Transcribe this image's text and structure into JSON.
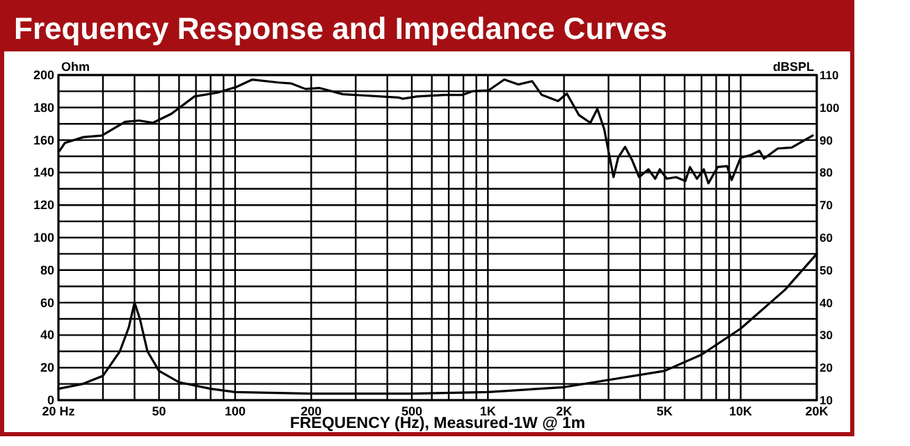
{
  "chart_data": {
    "type": "line",
    "title": "Frequency Response and Impedance Curves",
    "xlabel": "FREQUENCY (Hz), Measured-1W @ 1m",
    "ylabel": "Ohm",
    "y2label": "dBSPL",
    "log": "x",
    "grid": true,
    "line_style": "solid",
    "marker": "none",
    "xlim": [
      20,
      20000
    ],
    "xticks": [
      {
        "value": 20,
        "label": "20 Hz"
      },
      {
        "value": 30,
        "label": null
      },
      {
        "value": 40,
        "label": null
      },
      50,
      {
        "value": 60,
        "label": null
      },
      {
        "value": 70,
        "label": null
      },
      {
        "value": 80,
        "label": null
      },
      {
        "value": 90,
        "label": null
      },
      100,
      200,
      {
        "value": 300,
        "label": null
      },
      {
        "value": 400,
        "label": null
      },
      500,
      {
        "value": 600,
        "label": null
      },
      {
        "value": 700,
        "label": null
      },
      {
        "value": 800,
        "label": null
      },
      {
        "value": 900,
        "label": null
      },
      {
        "value": 1000,
        "label": "1K"
      },
      {
        "value": 2000,
        "label": "2K"
      },
      {
        "value": 3000,
        "label": null
      },
      {
        "value": 4000,
        "label": null
      },
      {
        "value": 5000,
        "label": "5K"
      },
      {
        "value": 6000,
        "label": null
      },
      {
        "value": 7000,
        "label": null
      },
      {
        "value": 8000,
        "label": null
      },
      {
        "value": 9000,
        "label": null
      },
      {
        "value": 10000,
        "label": "10K"
      },
      {
        "value": 20000,
        "label": "20K"
      }
    ],
    "ylim": [
      0,
      200
    ],
    "yticks": [
      0,
      {
        "value": 10,
        "label": null
      },
      20,
      {
        "value": 30,
        "label": null
      },
      40,
      {
        "value": 50,
        "label": null
      },
      60,
      {
        "value": 70,
        "label": null
      },
      80,
      {
        "value": 90,
        "label": null
      },
      100,
      {
        "value": 110,
        "label": null
      },
      120,
      {
        "value": 130,
        "label": null
      },
      140,
      {
        "value": 150,
        "label": null
      },
      160,
      {
        "value": 170,
        "label": null
      },
      180,
      {
        "value": 190,
        "label": null
      },
      200
    ],
    "y2lim": [
      10,
      110
    ],
    "y2ticks": [
      10,
      20,
      30,
      40,
      50,
      60,
      70,
      80,
      90,
      100,
      110
    ],
    "series": [
      {
        "color": "#000000",
        "axis": "y2",
        "x": [
          20.2,
          21.2,
          25.1,
          29.7,
          36.7,
          41.7,
          47.3,
          56,
          69,
          85.3,
          101,
          117,
          148,
          167,
          190,
          216,
          267,
          442,
          461,
          523,
          673,
          794,
          867,
          1007,
          1161,
          1318,
          1496,
          1633,
          1894,
          2052,
          2291,
          2543,
          2710,
          2884,
          3141,
          3275,
          3490,
          3716,
          3963,
          4315,
          4592,
          4787,
          5103,
          5549,
          6040,
          6300,
          6712,
          7148,
          7451,
          8110,
          8830,
          9208,
          10000,
          10890,
          11860,
          12360,
          14030,
          15920,
          19260
        ],
        "values": [
          86.7,
          89.1,
          90.9,
          91.4,
          95.6,
          96,
          95.3,
          98.1,
          103.4,
          104.6,
          106.3,
          108.6,
          107.7,
          107.4,
          105.7,
          106,
          104.1,
          103.1,
          102.7,
          103.4,
          103.9,
          103.9,
          105,
          105.3,
          108.6,
          107.1,
          108.1,
          103.9,
          102,
          104.3,
          97.7,
          95.3,
          99.6,
          93.4,
          78.6,
          84.6,
          87.9,
          83.9,
          78.6,
          81,
          78.1,
          81,
          78.1,
          78.6,
          77.4,
          81.7,
          78.1,
          81,
          76.7,
          81.7,
          82,
          77.7,
          84.6,
          85.3,
          86.7,
          84.3,
          87.4,
          87.7,
          91.4
        ]
      },
      {
        "color": "#000000",
        "axis": "y",
        "x": [
          20,
          25,
          30,
          35,
          38,
          40,
          42,
          45,
          50,
          60,
          80,
          100,
          200,
          500,
          1000,
          2000,
          5000,
          7000,
          10000,
          15000,
          20000
        ],
        "values": [
          7,
          10,
          15,
          30,
          45,
          60,
          50,
          30,
          18,
          11,
          7,
          5,
          4,
          4,
          5,
          8,
          18,
          28,
          44,
          68,
          90
        ]
      }
    ]
  }
}
